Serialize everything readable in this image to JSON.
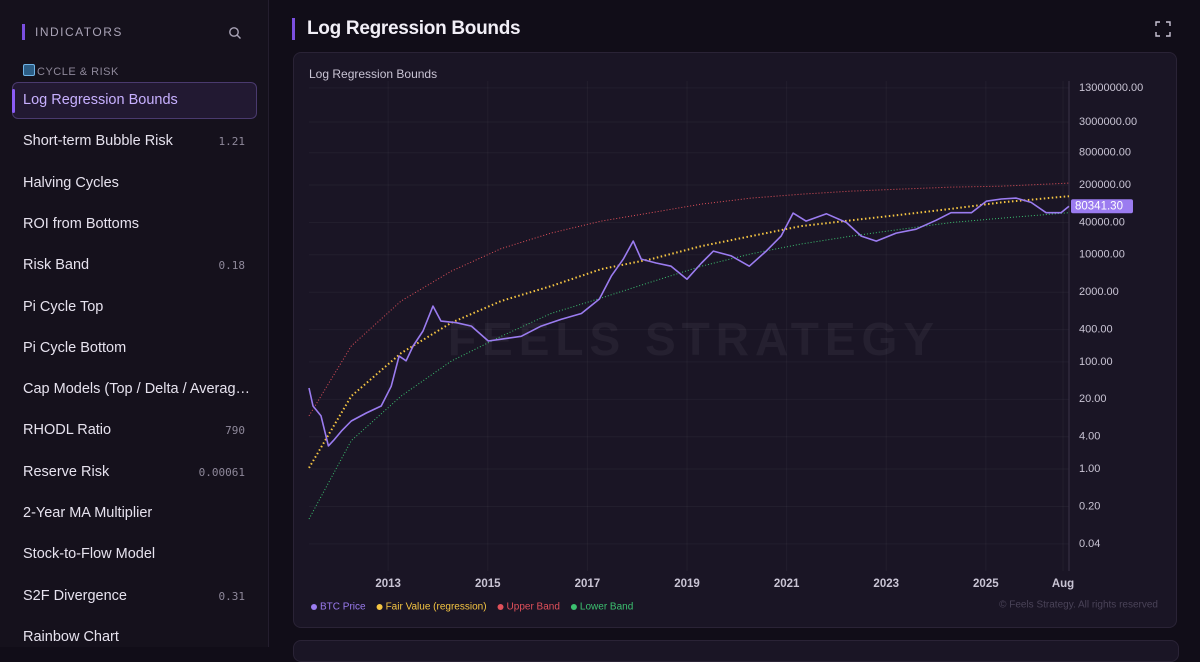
{
  "sidebar": {
    "header": "INDICATORS",
    "section": "CYCLE & RISK",
    "items": [
      {
        "label": "Log Regression Bounds"
      },
      {
        "label": "Short-term Bubble Risk",
        "value": "1.21"
      },
      {
        "label": "Halving Cycles"
      },
      {
        "label": "ROI from Bottoms"
      },
      {
        "label": "Risk Band",
        "value": "0.18"
      },
      {
        "label": "Pi Cycle Top"
      },
      {
        "label": "Pi Cycle Bottom"
      },
      {
        "label": "Cap Models (Top / Delta / Averag…"
      },
      {
        "label": "RHODL Ratio",
        "value": "790"
      },
      {
        "label": "Reserve Risk",
        "value": "0.00061"
      },
      {
        "label": "2-Year MA Multiplier"
      },
      {
        "label": "Stock-to-Flow Model"
      },
      {
        "label": "S2F Divergence",
        "value": "0.31"
      },
      {
        "label": "Rainbow Chart"
      }
    ]
  },
  "page_title": "Log Regression Bounds",
  "watermark": "FEELS STRATEGY",
  "footer": "© Feels Strategy. All rights reserved",
  "chart_data": {
    "type": "line",
    "title": "Log Regression Bounds",
    "log_y": true,
    "grid": true,
    "xlim": [
      2011.41,
      2026.67
    ],
    "ylim": [
      0.0125,
      17500000
    ],
    "xticks": [
      2013,
      2015,
      2017,
      2019,
      2021,
      2023,
      2025,
      {
        "value": 2026.55,
        "label": "Aug"
      }
    ],
    "yticks": [
      {
        "value": 0.04,
        "label": "0.04"
      },
      {
        "value": 0.2,
        "label": "0.20"
      },
      {
        "value": 1,
        "label": "1.00"
      },
      {
        "value": 4,
        "label": "4.00"
      },
      {
        "value": 20,
        "label": "20.00"
      },
      {
        "value": 100,
        "label": "100.00"
      },
      {
        "value": 400,
        "label": "400.00"
      },
      {
        "value": 2000,
        "label": "2000.00"
      },
      {
        "value": 10000,
        "label": "10000.00"
      },
      {
        "value": 40000,
        "label": "40000.00"
      },
      {
        "value": 200000,
        "label": "200000.00"
      },
      {
        "value": 800000,
        "label": "800000.00"
      },
      {
        "value": 3000000,
        "label": "3000000.00"
      },
      {
        "value": 13000000,
        "label": "13000000.00"
      }
    ],
    "price_tag": {
      "value": 80341.3,
      "label": "80341.30"
    },
    "series": [
      {
        "name": "Upper Band",
        "color": "#e0505a",
        "line_style": "dotted",
        "x": [
          2011.41,
          2012.26,
          2013.26,
          2014.27,
          2015.27,
          2016.27,
          2017.28,
          2018.28,
          2019.29,
          2020.29,
          2021.29,
          2022.3,
          2023.3,
          2024.31,
          2025.31,
          2026.67
        ],
        "values": [
          9.8,
          198,
          1370,
          4950,
          13000,
          25300,
          42500,
          61000,
          88000,
          114000,
          135000,
          154000,
          168000,
          183000,
          190000,
          217000
        ]
      },
      {
        "name": "Lower Band",
        "color": "#3cc070",
        "line_style": "dotted",
        "x": [
          2011.41,
          2012.26,
          2013.26,
          2014.27,
          2015.27,
          2016.27,
          2017.28,
          2018.28,
          2019.29,
          2020.29,
          2021.29,
          2022.3,
          2023.3,
          2024.31,
          2025.31,
          2026.67
        ],
        "values": [
          0.117,
          3.4,
          23,
          104,
          300,
          800,
          1560,
          3100,
          6100,
          10400,
          15900,
          22300,
          30000,
          40000,
          48000,
          61000
        ]
      },
      {
        "name": "Fair Value (regression)",
        "color": "#f5c542",
        "line_style": "dotted",
        "x": [
          2011.41,
          2012.26,
          2013.26,
          2014.27,
          2015.27,
          2016.27,
          2017.28,
          2018.28,
          2019.29,
          2020.29,
          2021.29,
          2022.3,
          2023.3,
          2024.31,
          2025.31,
          2026.67
        ],
        "values": [
          1.05,
          23,
          146,
          540,
          1370,
          2600,
          5400,
          8300,
          14500,
          22300,
          34300,
          44000,
          56000,
          72000,
          95000,
          124000
        ]
      },
      {
        "name": "BTC Price",
        "color": "#9b7cf0",
        "line_style": "solid",
        "x": [
          2011.41,
          2011.49,
          2011.65,
          2011.8,
          2011.9,
          2012.06,
          2012.26,
          2012.56,
          2012.86,
          2013.06,
          2013.22,
          2013.36,
          2013.5,
          2013.7,
          2013.9,
          2014.06,
          2014.37,
          2014.67,
          2015.01,
          2015.27,
          2015.67,
          2016.07,
          2016.47,
          2016.88,
          2017.24,
          2017.48,
          2017.72,
          2017.92,
          2018.08,
          2018.38,
          2018.68,
          2019.0,
          2019.29,
          2019.53,
          2019.89,
          2020.25,
          2020.59,
          2020.89,
          2021.13,
          2021.39,
          2021.8,
          2022.2,
          2022.5,
          2022.8,
          2023.2,
          2023.6,
          2024.0,
          2024.3,
          2024.71,
          2025.01,
          2025.31,
          2025.61,
          2025.91,
          2026.21,
          2026.51,
          2026.67
        ],
        "values": [
          32.5,
          15,
          9.8,
          2.7,
          3.4,
          5.1,
          7.9,
          11.1,
          15,
          35,
          128,
          105,
          198,
          377,
          1100,
          577,
          540,
          466,
          245,
          265,
          300,
          466,
          620,
          800,
          1490,
          4000,
          8300,
          18000,
          8300,
          7000,
          6100,
          3500,
          7000,
          11700,
          9500,
          6100,
          11700,
          22300,
          59800,
          42500,
          58000,
          40000,
          22300,
          18000,
          25300,
          30000,
          44000,
          61000,
          61000,
          100000,
          110000,
          114000,
          95000,
          61000,
          61000,
          80341.3
        ]
      }
    ]
  }
}
